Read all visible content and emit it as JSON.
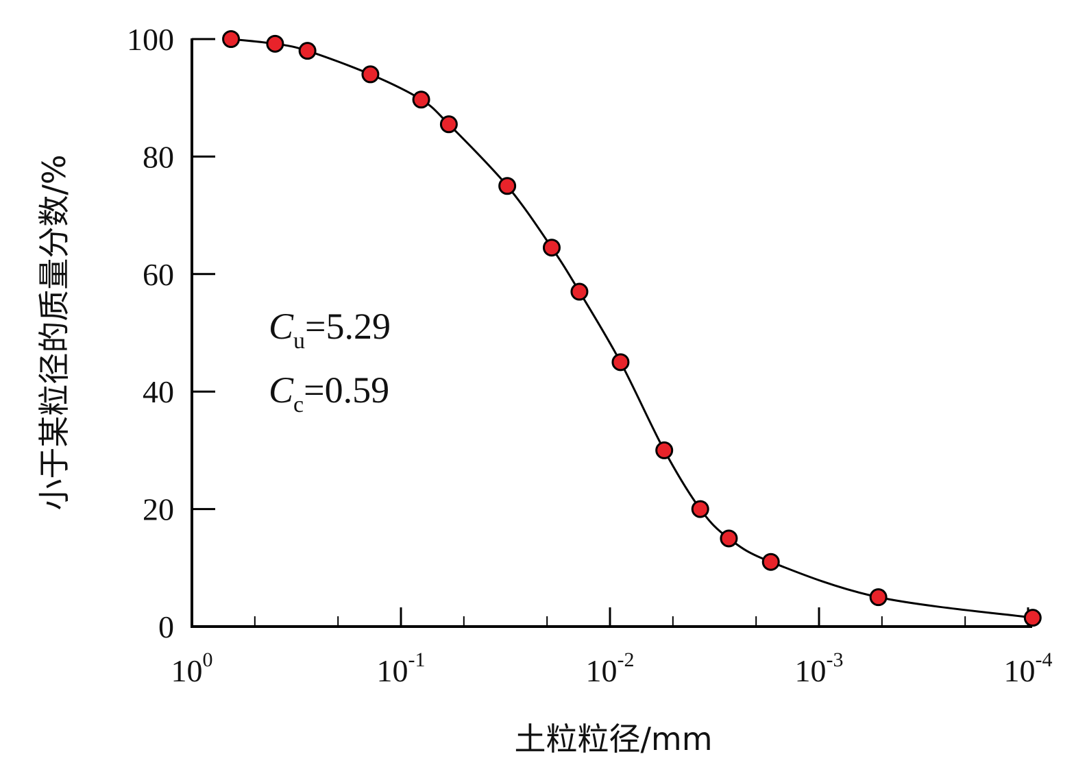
{
  "chart_data": {
    "type": "scatter",
    "xlabel": "土粒粒径/mm",
    "ylabel": "小于某粒径的质量分数/%",
    "x_scale": "log",
    "x_reversed": true,
    "xlim": [
      1,
      0.0001
    ],
    "ylim": [
      0,
      100
    ],
    "x_ticks": [
      {
        "value": 1,
        "base": "10",
        "exp": "0"
      },
      {
        "value": 0.1,
        "base": "10",
        "exp": "-1"
      },
      {
        "value": 0.01,
        "base": "10",
        "exp": "-2"
      },
      {
        "value": 0.001,
        "base": "10",
        "exp": "-3"
      },
      {
        "value": 0.0001,
        "base": "10",
        "exp": "-4"
      }
    ],
    "y_ticks": [
      "0",
      "20",
      "40",
      "60",
      "80",
      "100"
    ],
    "grid": false,
    "series": [
      {
        "marker_color": "#e8232a",
        "line_color": "#000000",
        "x": [
          0.65,
          0.4,
          0.28,
          0.14,
          0.08,
          0.059,
          0.031,
          0.019,
          0.014,
          0.0089,
          0.0055,
          0.0037,
          0.0027,
          0.0017,
          0.00052,
          9.5e-05
        ],
        "y": [
          100,
          99.2,
          98,
          94,
          89.7,
          85.5,
          75,
          64.5,
          57,
          45,
          30,
          20,
          15,
          11,
          5,
          1.5
        ]
      }
    ],
    "annotations": [
      {
        "symbol": "C",
        "sub": "u",
        "text": "=5.29"
      },
      {
        "symbol": "C",
        "sub": "c",
        "text": "=0.59"
      }
    ]
  }
}
